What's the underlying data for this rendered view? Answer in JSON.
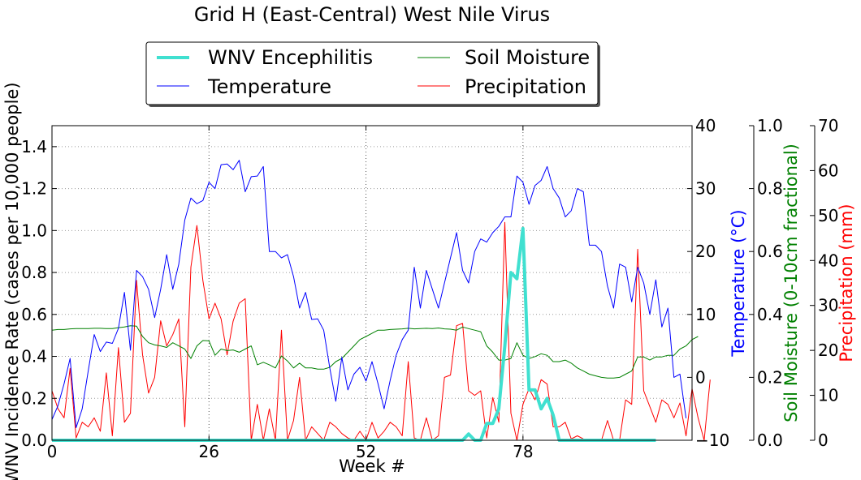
{
  "chart_data": {
    "type": "line",
    "title": "Grid H (East-Central) West Nile Virus",
    "xlabel": "Week #",
    "xlim": [
      0,
      106
    ],
    "x_ticks": [
      0,
      26,
      52,
      78
    ],
    "grid": true,
    "legend_placement": "top-center, two columns, above plot",
    "axes": {
      "wnv": {
        "label": "WNV Incidence Rate (cases per 10,000 people)",
        "range": [
          0,
          1.5
        ],
        "ticks": [
          0.0,
          0.2,
          0.4,
          0.6,
          0.8,
          1.0,
          1.2,
          1.4
        ],
        "color": "#000000"
      },
      "temperature": {
        "label": "Temperature ($^\\circ$C)",
        "label_display": "Temperature (°C)",
        "range": [
          -10,
          40
        ],
        "ticks": [
          -10,
          0,
          10,
          20,
          30,
          40
        ],
        "color": "#0000ff"
      },
      "soil": {
        "label": "Soil Moisture (0-10cm fractional)",
        "range": [
          0,
          1
        ],
        "ticks": [
          0.0,
          0.2,
          0.4,
          0.6,
          0.8,
          1.0
        ],
        "color": "#008000"
      },
      "precip": {
        "label": "Precipitation (mm)",
        "range": [
          0,
          70
        ],
        "ticks": [
          0,
          10,
          20,
          30,
          40,
          50,
          60,
          70
        ],
        "color": "#ff0000"
      }
    },
    "series": [
      {
        "name": "WNV Encephilitis",
        "axis": "wnv",
        "color": "#40e0d0",
        "width": 4,
        "x0": 0,
        "values": [
          0,
          0,
          0,
          0,
          0,
          0,
          0,
          0,
          0,
          0,
          0,
          0,
          0,
          0,
          0,
          0,
          0,
          0,
          0,
          0,
          0,
          0,
          0,
          0,
          0,
          0,
          0,
          0,
          0,
          0,
          0,
          0,
          0,
          0,
          0,
          0,
          0,
          0,
          0,
          0,
          0,
          0,
          0,
          0,
          0,
          0,
          0,
          0,
          0,
          0,
          0,
          0,
          0,
          0,
          0,
          0,
          0,
          0,
          0,
          0,
          0,
          0,
          0,
          0,
          0,
          0,
          0,
          0,
          0,
          0.03,
          0,
          0,
          0.08,
          0.08,
          0.15,
          0.45,
          0.8,
          0.77,
          1.01,
          0.24,
          0.24,
          0.15,
          0.2,
          0.12,
          0,
          0,
          0,
          0,
          0,
          0,
          0,
          0,
          0,
          0,
          0,
          0,
          0,
          0,
          0,
          0,
          0
        ]
      },
      {
        "name": "Temperature",
        "axis": "temperature",
        "color": "#0000ff",
        "width": 1,
        "x0": 0,
        "values": [
          -6.7,
          -4.5,
          -1,
          3,
          -8,
          -5,
          1,
          6.8,
          4.1,
          5.6,
          5.4,
          7.8,
          13.5,
          4.3,
          17,
          16,
          14,
          9.5,
          14,
          19.5,
          14,
          18,
          25,
          28.5,
          27.6,
          28.1,
          31,
          30,
          33.8,
          33.9,
          33,
          34.5,
          29.5,
          31.9,
          32,
          33.5,
          20,
          20,
          19,
          19.5,
          16,
          11,
          13.5,
          9.2,
          9.3,
          7.5,
          1.5,
          -3.8,
          3.2,
          -2,
          0.5,
          1.6,
          -0.6,
          2.5,
          -1,
          -5,
          -0.5,
          3.5,
          6,
          7.5,
          17.5,
          11,
          17,
          14,
          11,
          15,
          19,
          23,
          17,
          15,
          20,
          22,
          21.5,
          23,
          24,
          25.5,
          25.5,
          32,
          31,
          27.5,
          30.5,
          31.3,
          33.5,
          30,
          28.5,
          25.5,
          26.5,
          30,
          29.5,
          21,
          21,
          20,
          14.5,
          11,
          18,
          17.5,
          12,
          17.5,
          15,
          10,
          15.5,
          8,
          11,
          0,
          0.5,
          -6.5
        ]
      },
      {
        "name": "Soil Moisture",
        "axis": "soil",
        "color": "#008000",
        "width": 1,
        "x0": 0,
        "values": [
          0.35,
          0.352,
          0.352,
          0.354,
          0.355,
          0.355,
          0.355,
          0.356,
          0.356,
          0.355,
          0.355,
          0.358,
          0.36,
          0.364,
          0.363,
          0.33,
          0.31,
          0.303,
          0.3,
          0.295,
          0.31,
          0.3,
          0.29,
          0.26,
          0.3,
          0.317,
          0.316,
          0.27,
          0.29,
          0.285,
          0.287,
          0.28,
          0.29,
          0.3,
          0.24,
          0.248,
          0.24,
          0.23,
          0.268,
          0.252,
          0.23,
          0.245,
          0.23,
          0.23,
          0.226,
          0.226,
          0.232,
          0.25,
          0.26,
          0.28,
          0.3,
          0.32,
          0.33,
          0.34,
          0.35,
          0.35,
          0.352,
          0.353,
          0.354,
          0.356,
          0.354,
          0.355,
          0.356,
          0.355,
          0.357,
          0.354,
          0.353,
          0.35,
          0.36,
          0.355,
          0.35,
          0.345,
          0.3,
          0.28,
          0.255,
          0.255,
          0.26,
          0.31,
          0.27,
          0.26,
          0.266,
          0.275,
          0.27,
          0.25,
          0.25,
          0.255,
          0.245,
          0.23,
          0.22,
          0.21,
          0.205,
          0.2,
          0.198,
          0.198,
          0.2,
          0.21,
          0.22,
          0.265,
          0.265,
          0.255,
          0.265,
          0.265,
          0.27,
          0.27,
          0.29,
          0.3,
          0.32,
          0.33
        ]
      },
      {
        "name": "Precipitation",
        "axis": "precip",
        "color": "#ff0000",
        "width": 1,
        "x0": 0,
        "values": [
          11,
          7,
          5,
          16,
          0.5,
          4,
          3,
          5,
          2,
          15,
          1,
          20.6,
          4,
          6,
          35.6,
          19,
          10.5,
          14,
          26.6,
          21,
          23.5,
          27,
          3,
          38.5,
          47.8,
          35.5,
          27,
          30.5,
          27,
          19,
          26.5,
          30.5,
          31.5,
          0,
          8,
          0,
          7,
          0,
          24.5,
          0,
          4.4,
          14,
          0,
          3,
          1.5,
          0,
          4,
          3,
          1.5,
          0.5,
          0,
          2,
          0,
          4,
          0.5,
          2,
          4,
          3,
          1,
          17.5,
          0.5,
          0,
          5,
          0,
          1,
          14,
          14.5,
          25.5,
          26,
          11,
          10,
          11,
          0.5,
          9.5,
          4,
          48.5,
          6,
          0,
          8,
          11.5,
          9,
          13.5,
          12.5,
          3,
          3,
          4,
          0.3,
          1,
          0.3,
          0,
          0,
          0,
          4.4,
          0,
          0,
          9,
          8,
          42.5,
          11,
          7.5,
          4,
          9,
          8,
          5,
          8.3,
          1,
          11.5,
          5,
          0,
          13.5
        ]
      }
    ]
  }
}
